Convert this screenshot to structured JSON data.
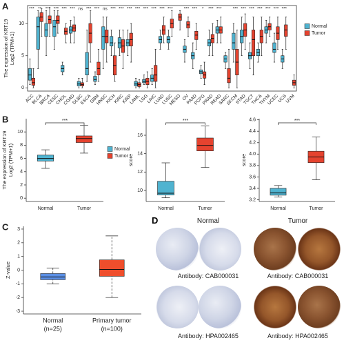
{
  "chart_data": [
    {
      "type": "boxplot",
      "panel_label": "A",
      "frame": "box",
      "y_label": [
        "The expression of KRT19",
        "Log2 (TPM+1)"
      ],
      "categories": [
        "ACC",
        "BLCA",
        "BRCA",
        "CESC",
        "CHOL",
        "COAD",
        "DLBC",
        "ESCA",
        "GBM",
        "HNSC",
        "KICH",
        "KIRC",
        "KIRP",
        "LAML",
        "LGG",
        "LIHC",
        "LUAD",
        "LUSC",
        "MESO",
        "OV",
        "PAAD",
        "PCPG",
        "PRAD",
        "READ",
        "SARC",
        "SKCM",
        "STAD",
        "TGCT",
        "THCA",
        "THYM",
        "UCEC",
        "UCS",
        "UVM"
      ],
      "significance": [
        "***",
        "**",
        "***",
        "***",
        "***",
        "***",
        "ns",
        "***",
        "***",
        "ns",
        "***",
        "***",
        "***",
        "***",
        "***",
        "***",
        "***",
        "***",
        null,
        "***",
        "***",
        "*",
        "***",
        "***",
        null,
        "***",
        "***",
        "***",
        "***",
        "***",
        "***",
        "***",
        null
      ],
      "series": [
        {
          "name": "Normal",
          "color": "#4fb3d0",
          "values": [
            [
              0.5,
              1.2,
              2,
              3,
              4.5
            ],
            [
              3,
              6,
              9.5,
              11,
              12
            ],
            [
              5,
              8,
              9,
              10,
              12
            ],
            [
              6,
              8,
              9.5,
              10.5,
              12
            ],
            [
              2,
              2.5,
              3,
              3.5,
              4
            ],
            [
              7,
              8.5,
              9,
              9.5,
              10.5
            ],
            [
              0,
              0.3,
              0.6,
              1,
              1.5
            ],
            [
              1,
              2,
              3,
              5.5,
              9
            ],
            [
              0.5,
              1,
              1.3,
              1.8,
              2.5
            ],
            [
              3,
              6,
              8,
              9.5,
              11
            ],
            [
              5,
              6.5,
              7,
              8,
              9
            ],
            [
              5,
              6.2,
              7,
              7.8,
              9
            ],
            [
              5,
              6.5,
              7,
              7.5,
              9
            ],
            [
              0,
              0.3,
              0.6,
              1,
              1.5
            ],
            [
              0.5,
              0.8,
              1,
              1.3,
              2
            ],
            [
              0.5,
              1,
              1.5,
              2,
              3
            ],
            [
              6,
              7,
              7.5,
              8,
              9
            ],
            [
              6,
              7,
              7.5,
              8,
              9
            ],
            null,
            [
              4,
              5.5,
              6,
              6.5,
              7.5
            ],
            [
              3,
              4.5,
              5,
              5.5,
              7
            ],
            [
              1.5,
              2.2,
              2.5,
              2.8,
              3.5
            ],
            [
              5,
              6.5,
              7,
              7.5,
              9
            ],
            [
              7,
              8.5,
              9,
              9.5,
              10.5
            ],
            [
              3,
              4,
              4.5,
              5,
              5.5
            ],
            [
              4,
              6,
              7,
              8.5,
              10
            ],
            [
              5,
              7,
              8,
              9,
              11
            ],
            [
              3,
              4.5,
              5,
              5.5,
              7
            ],
            [
              4,
              5,
              5.5,
              6,
              7
            ],
            [
              7,
              8.5,
              9,
              9.5,
              10.5
            ],
            [
              4,
              5.5,
              6,
              7,
              8.5
            ],
            [
              3,
              4,
              4.5,
              5,
              6
            ],
            null
          ]
        },
        {
          "name": "Tumor",
          "color": "#e5432f",
          "values": [
            [
              0,
              0.4,
              0.8,
              1.5,
              3
            ],
            [
              8,
              10.3,
              11,
              11.7,
              12.3
            ],
            [
              8,
              10,
              10.6,
              11.2,
              12.5
            ],
            [
              8.5,
              10,
              10.5,
              11.2,
              12
            ],
            [
              7,
              8.3,
              8.8,
              9.3,
              10
            ],
            [
              7,
              8.8,
              9.3,
              9.8,
              11
            ],
            [
              0,
              0.3,
              0.5,
              0.8,
              1.5
            ],
            [
              4,
              7,
              8.5,
              10,
              12
            ],
            [
              1,
              2,
              3,
              4,
              6
            ],
            [
              4,
              7,
              8,
              9,
              11
            ],
            [
              1,
              2,
              3.5,
              5,
              7
            ],
            [
              3,
              5.5,
              6.5,
              7.5,
              9
            ],
            [
              4,
              6.5,
              7.5,
              8.5,
              10
            ],
            [
              0,
              0.2,
              0.5,
              0.8,
              1.3
            ],
            [
              0,
              0.5,
              1,
              1.5,
              2.5
            ],
            [
              0,
              1,
              2,
              3.5,
              6
            ],
            [
              7,
              8.3,
              9,
              9.7,
              11
            ],
            [
              8,
              9.3,
              10,
              10.7,
              12
            ],
            [
              9,
              10.5,
              11,
              11.5,
              12
            ],
            [
              8,
              9.3,
              9.8,
              10.3,
              11
            ],
            [
              6,
              7.5,
              8.2,
              8.8,
              10
            ],
            [
              0.5,
              1.5,
              2,
              2.5,
              4
            ],
            [
              5,
              7,
              7.7,
              8.3,
              10
            ],
            [
              7,
              8.5,
              9,
              9.5,
              11
            ],
            [
              0,
              0.8,
              1.5,
              3,
              6
            ],
            [
              0,
              2,
              4,
              6,
              9
            ],
            [
              6,
              8,
              9,
              10,
              11.5
            ],
            [
              2,
              5,
              7.5,
              9,
              11
            ],
            [
              5,
              7,
              8,
              9,
              11
            ],
            [
              8,
              9,
              9.5,
              10,
              11
            ],
            [
              6,
              7.5,
              8.5,
              9.5,
              11
            ],
            [
              6,
              8,
              9,
              9.8,
              11
            ],
            [
              0,
              0.4,
              0.8,
              1.2,
              2
            ]
          ]
        }
      ],
      "ylim": [
        -0.5,
        12.8
      ],
      "yticks": [
        0,
        5,
        10
      ],
      "legend": "right"
    },
    {
      "type": "boxplot",
      "panel_label": "B",
      "frame": "axes",
      "y_label": [
        "The expression of KRT19",
        "Log2 (TPM+1)"
      ],
      "categories": [
        "Normal",
        "Tumor"
      ],
      "colors": [
        "#4fb3d0",
        "#e5432f"
      ],
      "values": [
        [
          4.5,
          5.6,
          6,
          6.5,
          7.3
        ],
        [
          6.8,
          8.4,
          9,
          9.4,
          11
        ]
      ],
      "significance": "***",
      "ylim": [
        -0.5,
        12
      ],
      "yticks": [
        0,
        2,
        4,
        6,
        8,
        10
      ],
      "legend": "right"
    },
    {
      "type": "boxplot",
      "frame": "axes",
      "y_label": [
        "score"
      ],
      "categories": [
        "Normal",
        "Tumor"
      ],
      "colors": [
        "#4fb3d0",
        "#e5432f"
      ],
      "values": [
        [
          9.2,
          9.5,
          9.7,
          11,
          13
        ],
        [
          12.5,
          14.3,
          14.9,
          15.7,
          17
        ]
      ],
      "significance": "***",
      "ylim": [
        8.8,
        17.8
      ],
      "yticks": [
        10,
        12,
        14,
        16
      ]
    },
    {
      "type": "boxplot",
      "frame": "axes",
      "y_label": [
        "score"
      ],
      "categories": [
        "Normal",
        "Tumor"
      ],
      "colors": [
        "#4fb3d0",
        "#e5432f"
      ],
      "values": [
        [
          3.25,
          3.28,
          3.32,
          3.4,
          3.45
        ],
        [
          3.55,
          3.85,
          3.95,
          4.05,
          4.3
        ]
      ],
      "significance": "***",
      "ylim": [
        3.17,
        4.62
      ],
      "yticks": [
        3.2,
        3.4,
        3.6,
        3.8,
        {
          "value": 4,
          "label": "4.0"
        },
        4.2,
        4.4,
        4.6
      ]
    },
    {
      "type": "boxplot",
      "panel_label": "C",
      "frame": "axes",
      "whisker_style": "dashed",
      "y_label": [
        "Z-value"
      ],
      "categories": [
        "Normal",
        "Primary tumor"
      ],
      "category_notes": [
        "(n=25)",
        "(n=100)"
      ],
      "colors": [
        "#5a8fe6",
        "#ef4e2c"
      ],
      "values": [
        [
          -1,
          -0.7,
          -0.5,
          -0.25,
          0.15
        ],
        [
          -2,
          -0.45,
          0.05,
          0.75,
          2.5
        ]
      ],
      "ylim": [
        -3.2,
        3.2
      ],
      "yticks": [
        -3,
        -2,
        -1,
        0,
        1,
        2,
        3
      ]
    }
  ],
  "panel_d": {
    "panel_label": "D",
    "groups": [
      {
        "title": "Normal",
        "antibodies": [
          "Antibody: CAB000031",
          "Antibody: HPA002465"
        ]
      },
      {
        "title": "Tumor",
        "antibodies": [
          "Antibody: CAB000031",
          "Antibody: HPA002465"
        ]
      }
    ]
  }
}
